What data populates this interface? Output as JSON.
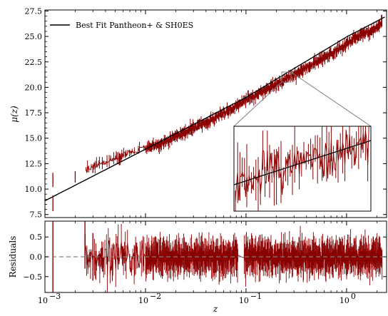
{
  "chart_data": [
    {
      "type": "line",
      "panel": "main",
      "ylabel": "μ(z)",
      "xscale": "log",
      "xlim": [
        0.001,
        2.5
      ],
      "ylim": [
        7.2,
        27.6
      ],
      "yticks": [
        7.5,
        10.0,
        12.5,
        15.0,
        17.5,
        20.0,
        22.5,
        25.0,
        27.5
      ],
      "yticklabels": [
        "7.5",
        "10.0",
        "12.5",
        "15.0",
        "17.5",
        "20.0",
        "22.5",
        "25.0",
        "27.5"
      ],
      "legend": {
        "placement": "upper-left",
        "entries": [
          "Best Fit Pantheon+ & SH0ES"
        ]
      },
      "series": [
        {
          "name": "Best Fit Pantheon+ & SH0ES",
          "kind": "model-line",
          "color": "#000000",
          "x": [
            0.001,
            0.01,
            0.1,
            1.0,
            2.5
          ],
          "y": [
            8.85,
            13.92,
            19.0,
            24.95,
            27.0
          ]
        },
        {
          "kind": "observational-data",
          "color": "#8b0000",
          "x": [
            0.0012,
            0.002,
            0.0025,
            0.003,
            0.004,
            0.005,
            0.007,
            0.01,
            0.015,
            0.02,
            0.03,
            0.05,
            0.07,
            0.1,
            0.15,
            0.2,
            0.3,
            0.5,
            0.7,
            1.0,
            1.4,
            2.0,
            2.26
          ],
          "y": [
            8.8,
            11.3,
            11.8,
            12.2,
            12.7,
            13.0,
            13.6,
            14.0,
            14.6,
            15.2,
            16.0,
            17.0,
            17.8,
            18.8,
            19.7,
            20.3,
            21.2,
            22.5,
            23.3,
            24.3,
            25.1,
            25.9,
            26.3
          ]
        }
      ],
      "inset": {
        "xlim": [
          0.22,
          0.27
        ],
        "ylim": [
          19.6,
          20.8
        ]
      }
    },
    {
      "type": "line",
      "panel": "residuals",
      "xlabel": "z",
      "ylabel": "Residuals",
      "xscale": "log",
      "xlim": [
        0.001,
        2.5
      ],
      "ylim": [
        -0.9,
        0.9
      ],
      "yticks": [
        -0.5,
        0.0,
        0.5
      ],
      "yticklabels": [
        "−0.5",
        "0.0",
        "0.5"
      ],
      "xticks": [
        0.001,
        0.01,
        0.1,
        1.0
      ],
      "xticklabels": [
        "10",
        "10",
        "10",
        "10"
      ],
      "xtickexponents": [
        "−3",
        "−2",
        "−1",
        "0"
      ],
      "reference_line": {
        "y": 0.0,
        "style": "dashed",
        "color": "#808080"
      },
      "series": [
        {
          "kind": "residuals",
          "color": "#8b0000",
          "x": [
            0.0012,
            0.002,
            0.003,
            0.005,
            0.01,
            0.02,
            0.05,
            0.1,
            0.2,
            0.5,
            1.0,
            2.0
          ],
          "y": [
            -0.9,
            0.6,
            -0.5,
            0.4,
            -0.3,
            0.2,
            -0.25,
            0.15,
            0.1,
            -0.1,
            0.3,
            -0.2
          ]
        }
      ]
    }
  ]
}
